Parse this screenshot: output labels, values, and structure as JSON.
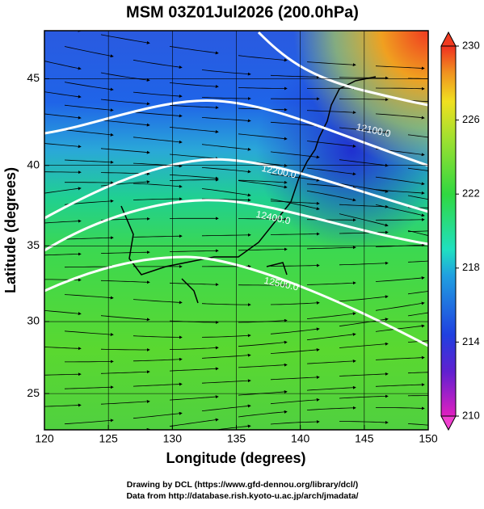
{
  "title": "MSM 03Z01Jul2026 (200.0hPa)",
  "x_axis": {
    "label": "Longitude (degrees)",
    "lim": [
      120,
      150
    ],
    "ticks": [
      120,
      125,
      130,
      135,
      140,
      145,
      150
    ]
  },
  "y_axis": {
    "label": "Latitude  (degrees)",
    "lim": [
      22.4,
      47.6
    ],
    "projection": "mercator",
    "ticks": [
      25,
      30,
      35,
      40,
      45
    ]
  },
  "colorbar": {
    "lim": [
      210,
      230
    ],
    "ticks": [
      210,
      214,
      218,
      222,
      226,
      230
    ]
  },
  "contours": [
    {
      "label": "12100.0"
    },
    {
      "label": "12200.0"
    },
    {
      "label": "12400.0"
    },
    {
      "label": "12500.0"
    }
  ],
  "footer": [
    "Drawing by DCL (https://www.gfd-dennou.org/library/dcl/)",
    "Data from http://database.rish.kyoto-u.ac.jp/arch/jmadata/"
  ]
}
